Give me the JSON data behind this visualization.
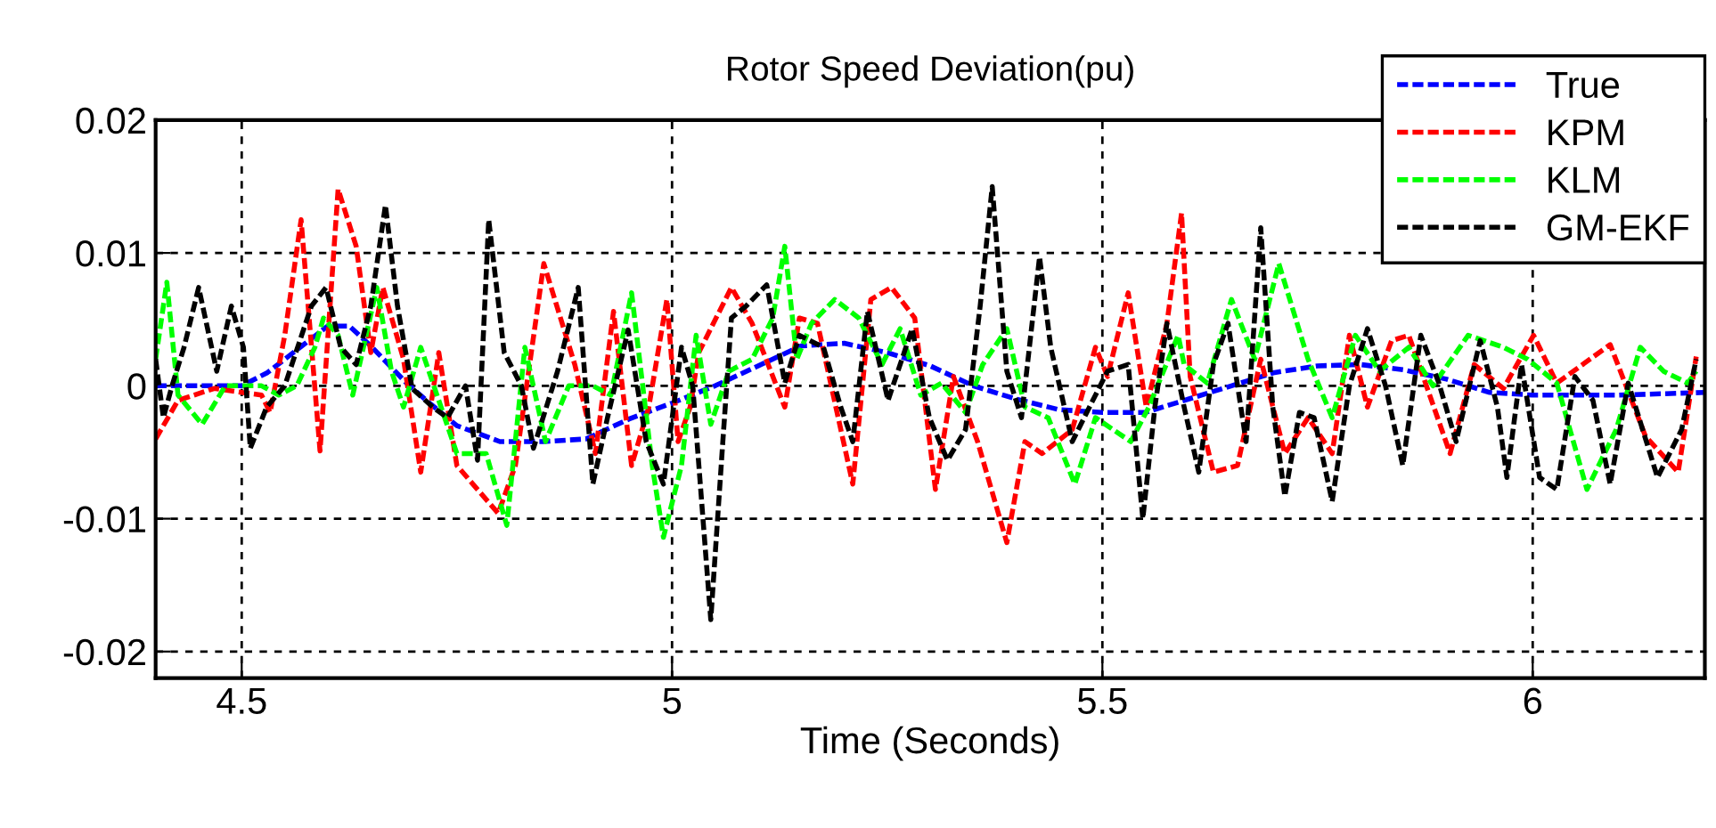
{
  "chart_data": {
    "type": "line",
    "title": "Rotor Speed Deviation(pu)",
    "xlabel": "Time (Seconds)",
    "xlim": [
      4.4,
      6.2
    ],
    "ylim": [
      -0.022,
      0.02
    ],
    "xticks": [
      4.5,
      5,
      5.5,
      6
    ],
    "yticks": [
      -0.02,
      -0.01,
      0,
      0.01,
      0.02
    ],
    "grid": true,
    "legend": "top right",
    "line_style": "dashed",
    "marker": "none",
    "series": [
      {
        "name": "True",
        "color": "#0000ff",
        "x": [
          4.4,
          4.45,
          4.5,
          4.53,
          4.57,
          4.6,
          4.625,
          4.65,
          4.69,
          4.72,
          4.75,
          4.8,
          4.85,
          4.9,
          4.95,
          5.0,
          5.05,
          5.1,
          5.15,
          5.2,
          5.25,
          5.3,
          5.35,
          5.4,
          5.45,
          5.5,
          5.55,
          5.6,
          5.65,
          5.7,
          5.75,
          5.8,
          5.85,
          5.9,
          5.95,
          6.0,
          6.1,
          6.2
        ],
        "values": [
          0,
          0,
          0,
          0.001,
          0.003,
          0.0045,
          0.0045,
          0.003,
          0.0003,
          -0.0014,
          -0.003,
          -0.0042,
          -0.0042,
          -0.004,
          -0.0025,
          -0.0013,
          0,
          0.0015,
          0.003,
          0.0032,
          0.0025,
          0.0015,
          0,
          -0.001,
          -0.0018,
          -0.002,
          -0.002,
          -0.001,
          0,
          0.001,
          0.0015,
          0.0016,
          0.0012,
          0.0005,
          -0.0005,
          -0.0007,
          -0.0007,
          -0.0005
        ]
      },
      {
        "name": "KPM",
        "color": "#ff0000",
        "x": [
          4.4,
          4.426,
          4.468,
          4.523,
          4.533,
          4.55,
          4.569,
          4.591,
          4.612,
          4.633,
          4.65,
          4.664,
          4.688,
          4.708,
          4.729,
          4.75,
          4.798,
          4.818,
          4.851,
          4.887,
          4.911,
          4.932,
          4.953,
          4.973,
          4.994,
          5.007,
          5.021,
          5.031,
          5.069,
          5.093,
          5.131,
          5.148,
          5.169,
          5.21,
          5.231,
          5.255,
          5.282,
          5.306,
          5.327,
          5.355,
          5.389,
          5.41,
          5.43,
          5.465,
          5.492,
          5.506,
          5.53,
          5.551,
          5.575,
          5.592,
          5.602,
          5.629,
          5.657,
          5.684,
          5.712,
          5.739,
          5.767,
          5.787,
          5.808,
          5.836,
          5.856,
          5.904,
          5.932,
          5.966,
          6.001,
          6.028,
          6.09,
          6.131,
          6.169,
          6.19
        ],
        "values": [
          -0.004,
          -0.0011,
          -0.0002,
          -0.0007,
          -0.002,
          0.0038,
          0.0125,
          -0.0049,
          0.0148,
          0.0105,
          0.0025,
          0.0074,
          0.002,
          -0.0065,
          0.0025,
          -0.006,
          -0.0096,
          -0.006,
          0.0092,
          0.0016,
          -0.0051,
          0.0056,
          -0.006,
          -0.0016,
          0.0065,
          -0.0042,
          -0.0016,
          0.0025,
          0.0074,
          0.0047,
          -0.0016,
          0.0051,
          0.0047,
          -0.0074,
          0.0065,
          0.0074,
          0.0051,
          -0.0078,
          0.0007,
          -0.0042,
          -0.0118,
          -0.0042,
          -0.0051,
          -0.0033,
          0.0029,
          0.0007,
          0.007,
          -0.0016,
          0.0047,
          0.013,
          0.0007,
          -0.0065,
          -0.006,
          0.002,
          -0.0051,
          -0.0024,
          -0.0051,
          0.0038,
          -0.0016,
          0.0034,
          0.0038,
          -0.0051,
          0.0016,
          -0.0002,
          0.0038,
          0.0002,
          0.0031,
          -0.0038,
          -0.0065,
          0.0022
        ]
      },
      {
        "name": "KLM",
        "color": "#00ff00",
        "x": [
          4.4,
          4.413,
          4.426,
          4.454,
          4.481,
          4.523,
          4.543,
          4.564,
          4.585,
          4.595,
          4.612,
          4.629,
          4.657,
          4.674,
          4.688,
          4.708,
          4.729,
          4.75,
          4.784,
          4.808,
          4.829,
          4.853,
          4.88,
          4.908,
          4.929,
          4.953,
          4.977,
          4.99,
          5.011,
          5.028,
          5.045,
          5.066,
          5.093,
          5.117,
          5.131,
          5.145,
          5.162,
          5.189,
          5.217,
          5.244,
          5.265,
          5.289,
          5.313,
          5.341,
          5.361,
          5.389,
          5.41,
          5.437,
          5.468,
          5.492,
          5.533,
          5.554,
          5.588,
          5.595,
          5.622,
          5.65,
          5.677,
          5.705,
          5.739,
          5.767,
          5.794,
          5.822,
          5.856,
          5.884,
          5.925,
          5.966,
          5.994,
          6.028,
          6.063,
          6.097,
          6.125,
          6.152,
          6.18,
          6.19
        ],
        "values": [
          0.002,
          0.0078,
          -0.0007,
          -0.0029,
          0,
          0,
          -0.0007,
          0,
          0.0029,
          0.0051,
          0.0038,
          -0.0007,
          0.0074,
          0.0011,
          -0.0016,
          0.0029,
          -0.0011,
          -0.0051,
          -0.0051,
          -0.0105,
          0.0029,
          -0.0042,
          0,
          0,
          -0.0007,
          0.007,
          -0.006,
          -0.0114,
          -0.006,
          0.0038,
          -0.0029,
          0.0011,
          0.002,
          0.0051,
          0.0105,
          0.002,
          0.0047,
          0.0065,
          0.0051,
          0.0016,
          0.0043,
          -0.0007,
          0.0002,
          -0.002,
          0.0016,
          0.0043,
          -0.0016,
          -0.0024,
          -0.0074,
          -0.0024,
          -0.0042,
          -0.0016,
          0.0038,
          0.0016,
          0.0002,
          0.0065,
          0.002,
          0.0092,
          0.002,
          -0.0024,
          0.0038,
          0.0011,
          0.0029,
          0,
          0.0038,
          0.0029,
          0.002,
          0.0002,
          -0.0078,
          -0.0033,
          0.0029,
          0.0011,
          0.0002,
          0.0011
        ]
      },
      {
        "name": "GM-EKF",
        "color": "#000000",
        "x": [
          4.4,
          4.409,
          4.419,
          4.433,
          4.45,
          4.471,
          4.488,
          4.502,
          4.51,
          4.529,
          4.55,
          4.581,
          4.598,
          4.615,
          4.633,
          4.65,
          4.667,
          4.681,
          4.698,
          4.722,
          4.739,
          4.76,
          4.774,
          4.787,
          4.805,
          4.825,
          4.839,
          4.867,
          4.891,
          4.908,
          4.925,
          4.949,
          4.97,
          4.99,
          5.011,
          5.024,
          5.045,
          5.059,
          5.069,
          5.086,
          5.11,
          5.131,
          5.148,
          5.176,
          5.196,
          5.21,
          5.227,
          5.251,
          5.279,
          5.299,
          5.32,
          5.341,
          5.358,
          5.372,
          5.389,
          5.406,
          5.427,
          5.44,
          5.465,
          5.485,
          5.506,
          5.53,
          5.547,
          5.561,
          5.575,
          5.595,
          5.612,
          5.629,
          5.646,
          5.667,
          5.684,
          5.698,
          5.712,
          5.729,
          5.746,
          5.767,
          5.787,
          5.808,
          5.829,
          5.849,
          5.87,
          5.891,
          5.911,
          5.939,
          5.959,
          5.97,
          5.987,
          6.008,
          6.028,
          6.049,
          6.07,
          6.09,
          6.111,
          6.145,
          6.173,
          6.19
        ],
        "values": [
          0.002,
          -0.0024,
          0,
          0.0029,
          0.0074,
          0.0011,
          0.006,
          0.0029,
          -0.0047,
          -0.0016,
          0,
          0.006,
          0.0074,
          0.0029,
          0.0016,
          0.006,
          0.0136,
          0.006,
          -0.0002,
          -0.0016,
          -0.0024,
          0,
          -0.0056,
          0.0125,
          0.0025,
          0,
          -0.0047,
          0.0011,
          0.0074,
          -0.0074,
          -0.0024,
          0.0042,
          -0.0042,
          -0.0074,
          0.0029,
          0,
          -0.0176,
          -0.0042,
          0.0051,
          0.006,
          0.0076,
          0.0002,
          0.0038,
          0.0029,
          -0.0016,
          -0.0042,
          0.0056,
          -0.0011,
          0.0043,
          -0.0024,
          -0.0056,
          -0.0033,
          0.006,
          0.015,
          0.0011,
          -0.0024,
          0.0097,
          0.0029,
          -0.0042,
          -0.0016,
          0.0011,
          0.0016,
          -0.01,
          -0.0016,
          0.0047,
          -0.0016,
          -0.0065,
          0.0016,
          0.0047,
          -0.0042,
          0.0119,
          -0.0016,
          -0.0083,
          -0.002,
          -0.0024,
          -0.0087,
          0,
          0.0043,
          0,
          -0.006,
          0.0038,
          0.0002,
          -0.0042,
          0.0034,
          -0.0016,
          -0.0069,
          0.0016,
          -0.0069,
          -0.0078,
          0.0007,
          -0.0011,
          -0.0074,
          0.0002,
          -0.0069,
          -0.0033,
          0.002
        ]
      }
    ]
  }
}
